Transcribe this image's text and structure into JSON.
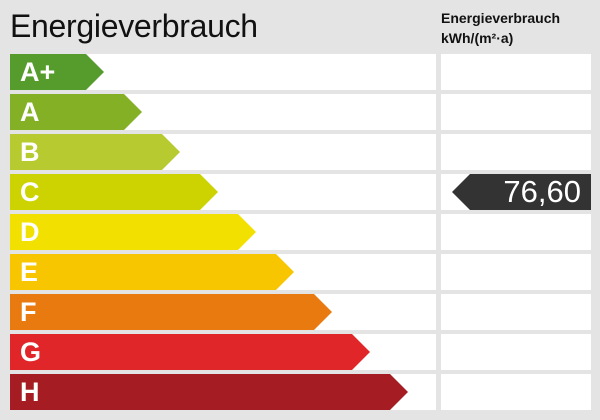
{
  "title": "Energieverbrauch",
  "column_header": {
    "line1": "Energieverbrauch",
    "line2": "kWh/(m²·a)"
  },
  "classes": [
    {
      "label": "A+",
      "color": "#559c2c"
    },
    {
      "label": "A",
      "color": "#83b024"
    },
    {
      "label": "B",
      "color": "#b7cb31"
    },
    {
      "label": "C",
      "color": "#ccd300"
    },
    {
      "label": "D",
      "color": "#f1e000"
    },
    {
      "label": "E",
      "color": "#f7c600"
    },
    {
      "label": "F",
      "color": "#e97a10"
    },
    {
      "label": "G",
      "color": "#e1262a"
    },
    {
      "label": "H",
      "color": "#a51c22"
    }
  ],
  "indicator": {
    "value": "76,60",
    "class": "C",
    "color": "#333333"
  }
}
